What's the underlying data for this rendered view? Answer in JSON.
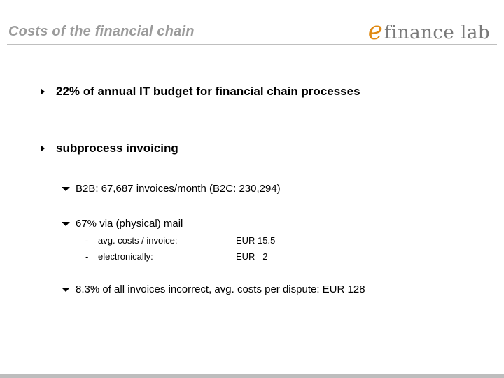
{
  "header": {
    "title": "Costs of the financial chain",
    "logo_e": "e",
    "logo_rest": "finance lab"
  },
  "bullets": {
    "b1": "22% of annual IT budget for financial chain processes",
    "b2": "subprocess invoicing"
  },
  "sub": {
    "s1": "B2B: 67,687 invoices/month (B2C: 230,294)",
    "s2": "67% via (physical) mail",
    "s3": "8.3% of all invoices incorrect, avg. costs per dispute: EUR 128"
  },
  "details": [
    {
      "dash": "-",
      "label": "avg. costs / invoice:",
      "value": "EUR 15.5"
    },
    {
      "dash": "-",
      "label": "electronically:",
      "value": "EUR   2"
    }
  ],
  "colors": {
    "title": "#9b9b9b",
    "logo_e": "#e08a14",
    "footer": "#bdbdbd"
  }
}
